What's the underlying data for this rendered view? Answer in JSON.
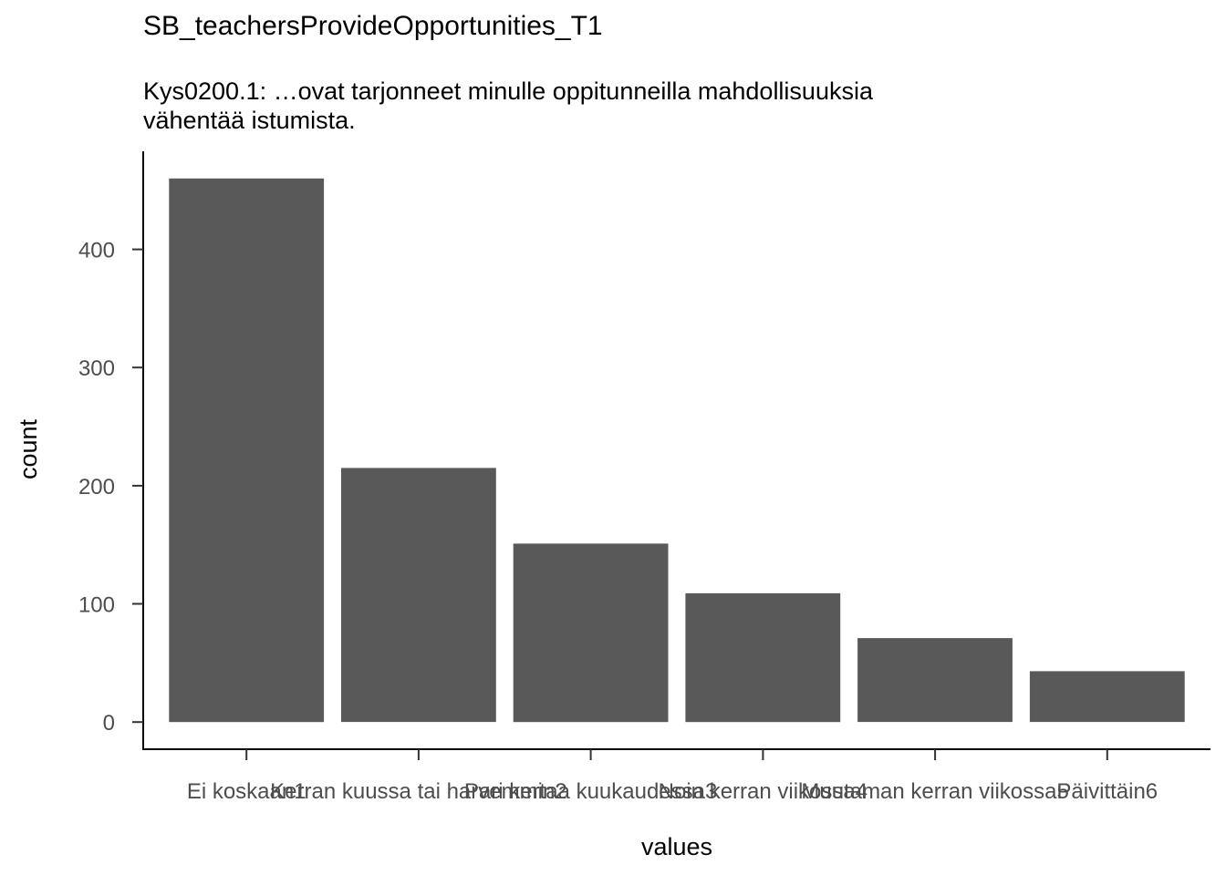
{
  "title": "SB_teachersProvideOpportunities_T1",
  "subtitle": {
    "line1": "Kys0200.1: …ovat tarjonneet minulle oppitunneilla mahdollisuuksia",
    "line2": "vähentää istumista."
  },
  "chart_data": {
    "type": "bar",
    "title": "SB_teachersProvideOpportunities_T1",
    "subtitle": "Kys0200.1: …ovat tarjonneet minulle oppitunneilla mahdollisuuksia vähentää istumista.",
    "xlabel": "values",
    "ylabel": "count",
    "categories": [
      "Ei koskaan1",
      "Kerran kuussa tai harvemmin2",
      "Pari kertaa kuukaudessa3",
      "Noin kerran viikossa4",
      "Muutaman kerran viikossa5",
      "Päivittäin6"
    ],
    "values": [
      460,
      215,
      151,
      109,
      71,
      43
    ],
    "ylim": [
      -23,
      483
    ],
    "yticks": [
      0,
      100,
      200,
      300,
      400
    ],
    "grid": false,
    "bar_color": "#595959"
  }
}
